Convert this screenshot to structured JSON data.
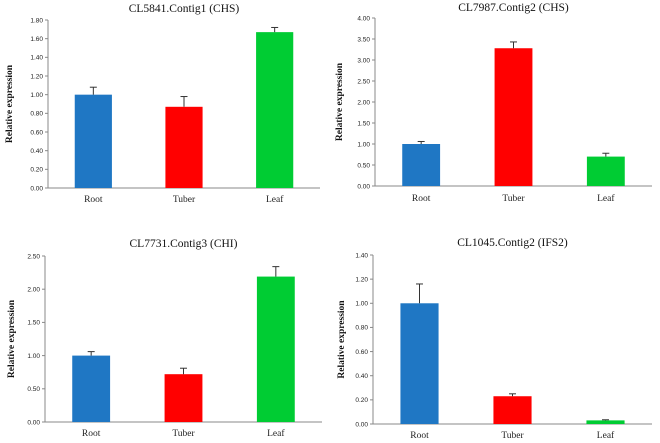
{
  "chart_data": [
    {
      "type": "bar",
      "title": "CL5841.Contig1 (CHS)",
      "ylabel": "Relative expression",
      "xlabel": "",
      "categories": [
        "Root",
        "Tuber",
        "Leaf"
      ],
      "values": [
        1.0,
        0.87,
        1.67
      ],
      "errors": [
        0.08,
        0.11,
        0.05
      ],
      "ylim": [
        0,
        1.8
      ],
      "yticks": [
        "0.00",
        "0.20",
        "0.40",
        "0.60",
        "0.80",
        "1.00",
        "1.20",
        "1.40",
        "1.60",
        "1.80"
      ],
      "colors": [
        "#1f77c4",
        "#ff0000",
        "#00cc33"
      ],
      "grid": false
    },
    {
      "type": "bar",
      "title": "CL7987.Contig2 (CHS)",
      "ylabel": "Relative expression",
      "xlabel": "",
      "categories": [
        "Root",
        "Tuber",
        "Leaf"
      ],
      "values": [
        1.0,
        3.28,
        0.7
      ],
      "errors": [
        0.06,
        0.15,
        0.08
      ],
      "ylim": [
        0,
        4.0
      ],
      "yticks": [
        "0.00",
        "0.50",
        "1.00",
        "1.50",
        "2.00",
        "2.50",
        "3.00",
        "3.50",
        "4.00"
      ],
      "colors": [
        "#1f77c4",
        "#ff0000",
        "#00cc33"
      ],
      "grid": false
    },
    {
      "type": "bar",
      "title": "CL7731.Contig3  (CHI)",
      "ylabel": "Relative expression",
      "xlabel": "",
      "categories": [
        "Root",
        "Tuber",
        "Leaf"
      ],
      "values": [
        1.0,
        0.72,
        2.19
      ],
      "errors": [
        0.06,
        0.09,
        0.15
      ],
      "ylim": [
        0,
        2.5
      ],
      "yticks": [
        "0.00",
        "0.50",
        "1.00",
        "1.50",
        "2.00",
        "2.50"
      ],
      "colors": [
        "#1f77c4",
        "#ff0000",
        "#00cc33"
      ],
      "grid": false
    },
    {
      "type": "bar",
      "title": "CL1045.Contig2  (IFS2)",
      "ylabel": "Relative expression",
      "xlabel": "",
      "categories": [
        "Root",
        "Tuber",
        "Leaf"
      ],
      "values": [
        1.0,
        0.23,
        0.03
      ],
      "errors": [
        0.16,
        0.02,
        0.005
      ],
      "ylim": [
        0,
        1.4
      ],
      "yticks": [
        "0.00",
        "0.20",
        "0.40",
        "0.60",
        "0.80",
        "1.00",
        "1.20",
        "1.40"
      ],
      "colors": [
        "#1f77c4",
        "#ff0000",
        "#00cc33"
      ],
      "grid": false
    }
  ]
}
